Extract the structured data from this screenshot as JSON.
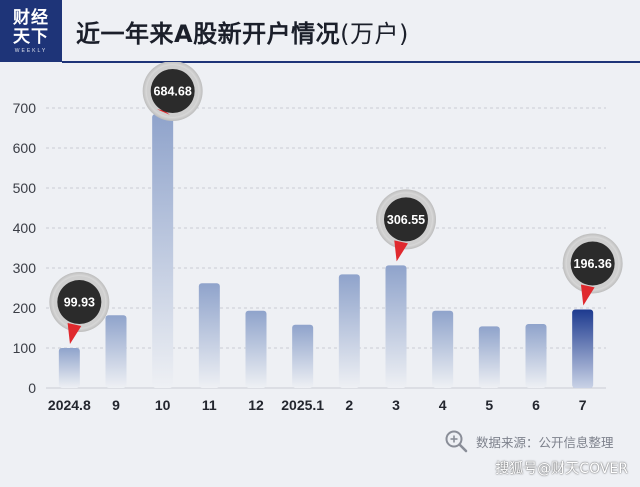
{
  "header": {
    "logo_line1": "财经",
    "logo_line2": "天下",
    "logo_sub": "WEEKLY",
    "title": "近一年来A股新开户情况",
    "title_unit": "(万户)"
  },
  "source": {
    "icon": "magnifier-icon",
    "text": "数据来源：公开信息整理"
  },
  "watermark": "搜狐号@财天COVER",
  "colors": {
    "bar_top": "#8fa3cb",
    "bar_bottom": "#eef0f4",
    "bar_highlight_top": "#1d3a8f",
    "bar_highlight_bottom": "#c9d2e6",
    "callout_fill": "#2b2b2b",
    "callout_ring": "#cfcfcf",
    "callout_pointer": "#e0292e",
    "grid": "#c9ccd3"
  },
  "chart_data": {
    "type": "bar",
    "categories": [
      "2024.8",
      "9",
      "10",
      "11",
      "12",
      "2025.1",
      "2",
      "3",
      "4",
      "5",
      "6",
      "7"
    ],
    "values": [
      99.93,
      182,
      684.68,
      262,
      193,
      158,
      284,
      306.55,
      193,
      154,
      160,
      196.36
    ],
    "ylim": [
      0,
      700
    ],
    "yticks": [
      0,
      100,
      200,
      300,
      400,
      500,
      600,
      700
    ],
    "grid": true,
    "highlight_index": 11,
    "annotations": [
      {
        "index": 0,
        "label": "99.93"
      },
      {
        "index": 2,
        "label": "684.68"
      },
      {
        "index": 7,
        "label": "306.55"
      },
      {
        "index": 11,
        "label": "196.36"
      }
    ]
  }
}
